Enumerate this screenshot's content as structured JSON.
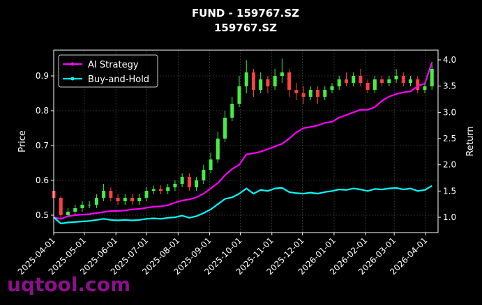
{
  "chart_data": {
    "type": "candlestick_dual",
    "title": "FUND - 159767.SZ",
    "subtitle": "159767.SZ",
    "ylabel": "Price",
    "y2label": "Return",
    "watermark": "uqtool.com",
    "legend": "upper left",
    "grid": true,
    "up_color": "#44ee44",
    "down_color": "#ff4040",
    "xlim": [
      "2025-04-01",
      "2026-04-13"
    ],
    "xticks": [
      "2025-04-01",
      "2025-05-01",
      "2025-06-01",
      "2025-07-01",
      "2025-08-01",
      "2025-09-01",
      "2025-10-01",
      "2025-11-01",
      "2025-12-01",
      "2026-01-01",
      "2026-02-01",
      "2026-03-01",
      "2026-04-01"
    ],
    "ylim": [
      0.45,
      0.974
    ],
    "yticks": [
      0.5,
      0.6,
      0.7,
      0.8,
      0.9
    ],
    "y2lim": [
      0.708,
      4.186
    ],
    "y2ticks": [
      {
        "value": 1,
        "label": "1.0"
      },
      1.5,
      {
        "value": 2,
        "label": "2.0"
      },
      2.5,
      {
        "value": 3,
        "label": "3.0"
      },
      3.5,
      {
        "value": 4,
        "label": "4.0"
      }
    ],
    "x": [
      "2025-04-01",
      "2025-04-08",
      "2025-04-15",
      "2025-04-22",
      "2025-04-29",
      "2025-05-06",
      "2025-05-13",
      "2025-05-20",
      "2025-05-27",
      "2025-06-03",
      "2025-06-10",
      "2025-06-17",
      "2025-06-24",
      "2025-07-01",
      "2025-07-08",
      "2025-07-15",
      "2025-07-22",
      "2025-07-29",
      "2025-08-05",
      "2025-08-12",
      "2025-08-19",
      "2025-08-26",
      "2025-09-02",
      "2025-09-09",
      "2025-09-16",
      "2025-09-23",
      "2025-09-30",
      "2025-10-07",
      "2025-10-14",
      "2025-10-21",
      "2025-10-28",
      "2025-11-04",
      "2025-11-11",
      "2025-11-18",
      "2025-11-25",
      "2025-12-02",
      "2025-12-09",
      "2025-12-16",
      "2025-12-23",
      "2025-12-30",
      "2026-01-06",
      "2026-01-13",
      "2026-01-20",
      "2026-01-27",
      "2026-02-03",
      "2026-02-10",
      "2026-02-17",
      "2026-02-24",
      "2026-03-03",
      "2026-03-10",
      "2026-03-17",
      "2026-03-24",
      "2026-03-31",
      "2026-04-07"
    ],
    "open": [
      0.57,
      0.55,
      0.5,
      0.51,
      0.52,
      0.53,
      0.53,
      0.55,
      0.57,
      0.55,
      0.54,
      0.55,
      0.54,
      0.55,
      0.57,
      0.575,
      0.57,
      0.58,
      0.59,
      0.61,
      0.58,
      0.6,
      0.63,
      0.66,
      0.72,
      0.78,
      0.82,
      0.87,
      0.91,
      0.86,
      0.89,
      0.87,
      0.9,
      0.91,
      0.86,
      0.85,
      0.84,
      0.86,
      0.84,
      0.86,
      0.87,
      0.89,
      0.88,
      0.9,
      0.88,
      0.86,
      0.89,
      0.88,
      0.89,
      0.9,
      0.88,
      0.89,
      0.86,
      0.87
    ],
    "high": [
      0.575,
      0.555,
      0.52,
      0.53,
      0.54,
      0.54,
      0.56,
      0.59,
      0.58,
      0.56,
      0.56,
      0.56,
      0.56,
      0.58,
      0.585,
      0.585,
      0.59,
      0.6,
      0.62,
      0.62,
      0.61,
      0.645,
      0.68,
      0.74,
      0.8,
      0.84,
      0.9,
      0.945,
      0.92,
      0.91,
      0.9,
      0.92,
      0.95,
      0.92,
      0.88,
      0.87,
      0.87,
      0.87,
      0.87,
      0.88,
      0.9,
      0.91,
      0.91,
      0.92,
      0.89,
      0.9,
      0.9,
      0.9,
      0.92,
      0.91,
      0.9,
      0.9,
      0.88,
      0.94
    ],
    "low": [
      0.54,
      0.49,
      0.495,
      0.5,
      0.51,
      0.52,
      0.52,
      0.54,
      0.54,
      0.53,
      0.53,
      0.53,
      0.53,
      0.54,
      0.56,
      0.56,
      0.56,
      0.57,
      0.58,
      0.57,
      0.57,
      0.59,
      0.62,
      0.65,
      0.71,
      0.77,
      0.81,
      0.85,
      0.84,
      0.85,
      0.85,
      0.86,
      0.88,
      0.84,
      0.83,
      0.82,
      0.83,
      0.82,
      0.83,
      0.85,
      0.86,
      0.87,
      0.87,
      0.87,
      0.85,
      0.85,
      0.87,
      0.87,
      0.88,
      0.87,
      0.87,
      0.85,
      0.85,
      0.86
    ],
    "close": [
      0.55,
      0.5,
      0.51,
      0.52,
      0.53,
      0.53,
      0.55,
      0.57,
      0.55,
      0.54,
      0.55,
      0.54,
      0.55,
      0.57,
      0.575,
      0.57,
      0.58,
      0.59,
      0.61,
      0.58,
      0.6,
      0.63,
      0.66,
      0.72,
      0.78,
      0.82,
      0.87,
      0.91,
      0.86,
      0.89,
      0.87,
      0.9,
      0.91,
      0.86,
      0.85,
      0.84,
      0.86,
      0.84,
      0.86,
      0.87,
      0.89,
      0.88,
      0.9,
      0.88,
      0.86,
      0.89,
      0.88,
      0.89,
      0.9,
      0.88,
      0.89,
      0.86,
      0.87,
      0.92
    ],
    "series": [
      {
        "name": "AI Strategy",
        "color": "#ff00ff",
        "axis": "y2",
        "values": [
          1.0,
          0.97,
          1.02,
          1.04,
          1.05,
          1.06,
          1.08,
          1.1,
          1.12,
          1.12,
          1.13,
          1.15,
          1.16,
          1.18,
          1.2,
          1.21,
          1.23,
          1.28,
          1.32,
          1.34,
          1.38,
          1.45,
          1.55,
          1.65,
          1.8,
          1.92,
          2.0,
          2.2,
          2.22,
          2.25,
          2.3,
          2.35,
          2.4,
          2.5,
          2.62,
          2.7,
          2.72,
          2.75,
          2.8,
          2.82,
          2.9,
          2.95,
          3.0,
          3.05,
          3.05,
          3.1,
          3.22,
          3.3,
          3.35,
          3.38,
          3.4,
          3.5,
          3.55,
          3.95
        ]
      },
      {
        "name": "Buy-and-Hold",
        "color": "#00ffff",
        "axis": "y2",
        "values": [
          1.0,
          0.88,
          0.9,
          0.91,
          0.92,
          0.93,
          0.95,
          0.97,
          0.95,
          0.94,
          0.95,
          0.94,
          0.95,
          0.97,
          0.98,
          0.97,
          0.99,
          1.0,
          1.03,
          0.99,
          1.02,
          1.08,
          1.15,
          1.25,
          1.35,
          1.38,
          1.45,
          1.55,
          1.45,
          1.52,
          1.5,
          1.55,
          1.56,
          1.48,
          1.46,
          1.45,
          1.47,
          1.45,
          1.48,
          1.5,
          1.53,
          1.52,
          1.55,
          1.53,
          1.5,
          1.54,
          1.53,
          1.55,
          1.56,
          1.53,
          1.55,
          1.5,
          1.52,
          1.6
        ]
      }
    ]
  }
}
